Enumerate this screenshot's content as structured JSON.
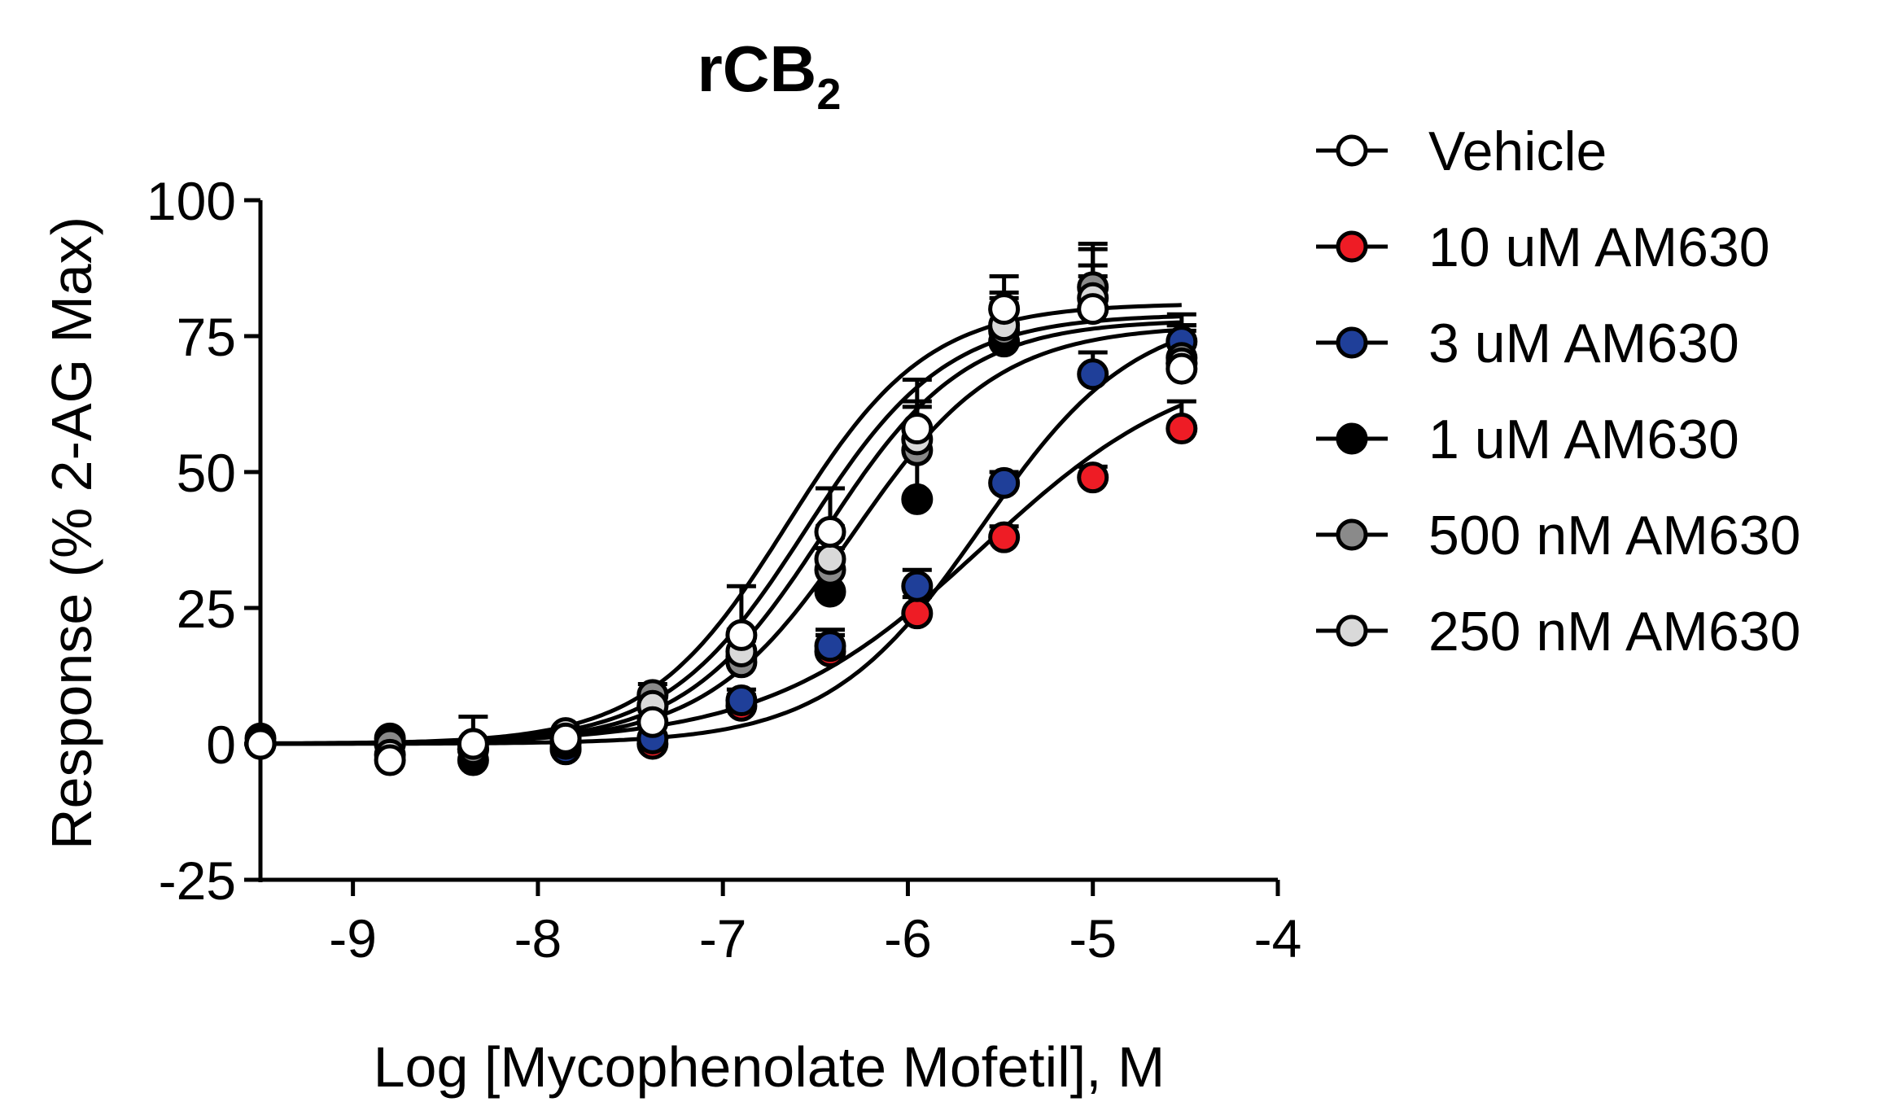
{
  "chart_data": {
    "type": "scatter",
    "title": "rCB",
    "title_subscript": "2",
    "xlabel": "Log [Mycophenolate Mofetil], M",
    "ylabel": "Response (% 2-AG Max)",
    "xlim": [
      -9.5,
      -4
    ],
    "ylim": [
      -25,
      100
    ],
    "xticks": [
      -9,
      -8,
      -7,
      -6,
      -5,
      -4
    ],
    "yticks": [
      -25,
      0,
      25,
      50,
      75,
      100
    ],
    "xtick_labels": [
      "-9",
      "-8",
      "-7",
      "-6",
      "-5",
      "-4"
    ],
    "ytick_labels": [
      "-25",
      "0",
      "25",
      "50",
      "75",
      "100"
    ],
    "grid": false,
    "legend_position": "right",
    "x": [
      -9.5,
      -8.8,
      -8.35,
      -7.85,
      -7.38,
      -6.9,
      -6.42,
      -5.95,
      -5.48,
      -5.0,
      -4.52
    ],
    "series": [
      {
        "name": "10 uM AM630",
        "color": "#ee1c25",
        "values": [
          0,
          0,
          -1,
          -1,
          0,
          7,
          17,
          24,
          38,
          49,
          58
        ],
        "error": [
          0,
          0,
          1,
          1,
          1,
          2,
          3,
          3,
          2,
          2,
          5
        ],
        "fit": {
          "bottom": 0,
          "top": 72,
          "log_ec50": -5.6,
          "hill": 0.75
        }
      },
      {
        "name": "3 uM AM630",
        "color": "#1f3f99",
        "values": [
          0,
          0,
          -1,
          -1,
          1,
          8,
          18,
          29,
          48,
          68,
          74
        ],
        "error": [
          0,
          0,
          1,
          1,
          1,
          2,
          3,
          3,
          2,
          4,
          5
        ],
        "fit": {
          "bottom": 0,
          "top": 80,
          "log_ec50": -5.6,
          "hill": 1.05
        }
      },
      {
        "name": "1 uM AM630",
        "color": "#000000",
        "values": [
          1,
          1,
          -3,
          0,
          7,
          16,
          28,
          45,
          74,
          80,
          70
        ],
        "error": [
          0,
          1,
          2,
          1,
          2,
          5,
          8,
          11,
          8,
          6,
          7
        ],
        "fit": {
          "bottom": 0,
          "top": 77,
          "log_ec50": -6.3,
          "hill": 1.1
        }
      },
      {
        "name": "500 nM AM630",
        "color": "#8a8a8a",
        "values": [
          0,
          0,
          -1,
          1,
          9,
          15,
          32,
          54,
          76,
          84,
          71
        ],
        "error": [
          0,
          0,
          1,
          1,
          2,
          4,
          6,
          8,
          5,
          7,
          6
        ],
        "fit": {
          "bottom": 0,
          "top": 78,
          "log_ec50": -6.45,
          "hill": 1.15
        }
      },
      {
        "name": "250 nM AM630",
        "color": "#d9d9d9",
        "values": [
          0,
          -2,
          0,
          2,
          7,
          17,
          34,
          56,
          77,
          82,
          70
        ],
        "error": [
          0,
          0,
          1,
          1,
          2,
          4,
          6,
          7,
          6,
          6,
          6
        ],
        "fit": {
          "bottom": 0,
          "top": 79,
          "log_ec50": -6.55,
          "hill": 1.15
        }
      },
      {
        "name": "Vehicle",
        "color": "#ffffff",
        "values": [
          0,
          -3,
          0,
          1,
          4,
          20,
          39,
          58,
          80,
          80,
          69
        ],
        "error": [
          0,
          0,
          5,
          1,
          2,
          9,
          8,
          9,
          6,
          12,
          8
        ],
        "fit": {
          "bottom": 0,
          "top": 81,
          "log_ec50": -6.65,
          "hill": 1.15
        }
      }
    ],
    "legend_order": [
      "Vehicle",
      "10 uM AM630",
      "3 uM AM630",
      "1 uM AM630",
      "500 nM AM630",
      "250 nM AM630"
    ]
  }
}
